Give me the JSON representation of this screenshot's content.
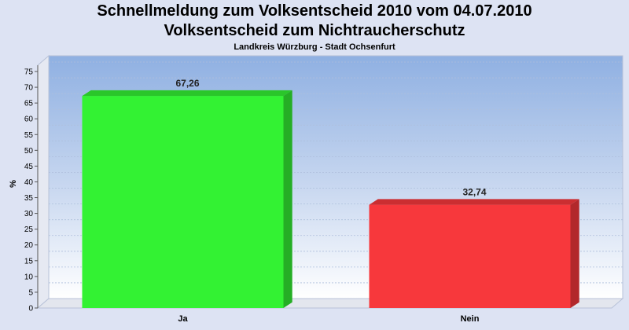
{
  "title": "Schnellmeldung zum Volksentscheid 2010 vom 04.07.2010",
  "subtitle": "Volksentscheid zum Nichtraucherschutz",
  "region": "Landkreis Würzburg - Stadt Ochsenfurt",
  "chart_data": {
    "type": "bar",
    "categories": [
      "Ja",
      "Nein"
    ],
    "values": [
      67.26,
      32.74
    ],
    "value_labels": [
      "67,26",
      "32,74"
    ],
    "colors": [
      "#33f233",
      "#f7383c"
    ],
    "ylabel": "%",
    "xlabel": "",
    "ylim": [
      0,
      77
    ],
    "yticks": [
      0,
      5,
      10,
      15,
      20,
      25,
      30,
      35,
      40,
      45,
      50,
      55,
      60,
      65,
      70,
      75
    ],
    "grid": true,
    "legend": "none"
  }
}
